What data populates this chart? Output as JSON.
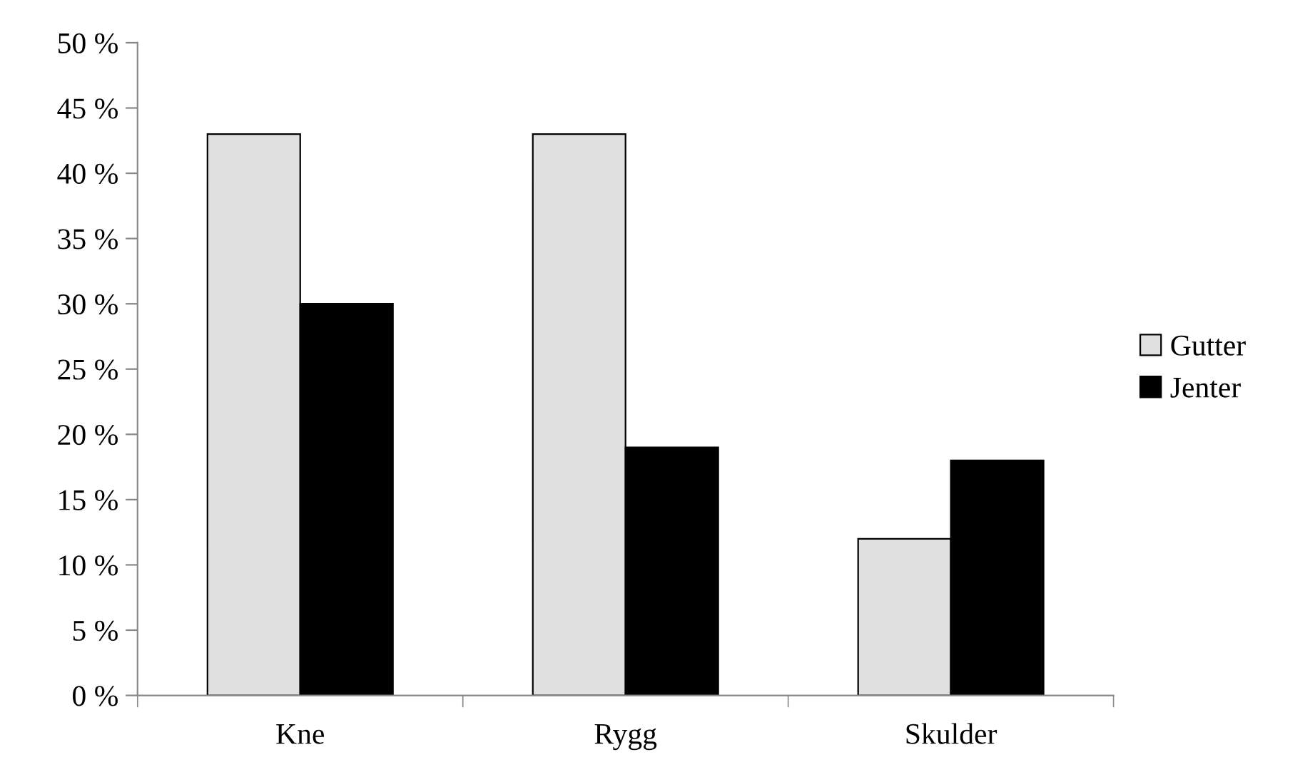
{
  "chart_data": {
    "type": "bar",
    "categories": [
      "Kne",
      "Rygg",
      "Skulder"
    ],
    "series": [
      {
        "name": "Gutter",
        "color": "#e0e0e0",
        "values": [
          43,
          43,
          12
        ]
      },
      {
        "name": "Jenter",
        "color": "#000000",
        "values": [
          30,
          19,
          18
        ]
      }
    ],
    "ylim": [
      0,
      50
    ],
    "yticks": [
      {
        "value": 0,
        "label": "0 %"
      },
      {
        "value": 5,
        "label": "5 %"
      },
      {
        "value": 10,
        "label": "10 %"
      },
      {
        "value": 15,
        "label": "15 %"
      },
      {
        "value": 20,
        "label": "20 %"
      },
      {
        "value": 25,
        "label": "25 %"
      },
      {
        "value": 30,
        "label": "30 %"
      },
      {
        "value": 35,
        "label": "35 %"
      },
      {
        "value": 40,
        "label": "40 %"
      },
      {
        "value": 45,
        "label": "45 %"
      },
      {
        "value": 50,
        "label": "50 %"
      }
    ],
    "grid": false,
    "legend": "right"
  }
}
